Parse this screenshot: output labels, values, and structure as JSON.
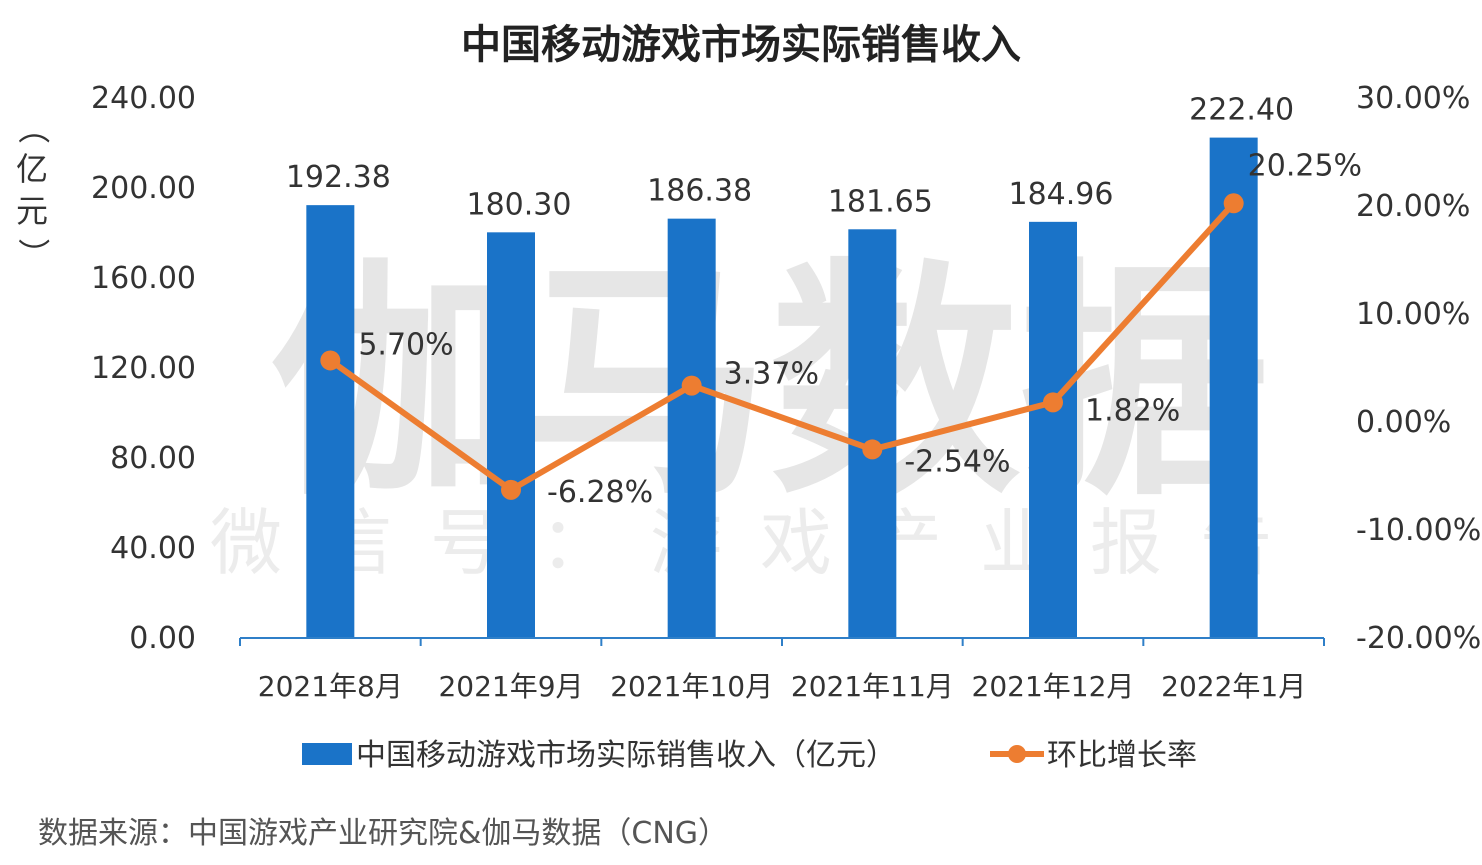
{
  "chart_data": {
    "type": "bar",
    "title": "中国移动游戏市场实际销售收入",
    "ylabel": "（亿元）",
    "categories": [
      "2021年8月",
      "2021年9月",
      "2021年10月",
      "2021年11月",
      "2021年12月",
      "2022年1月"
    ],
    "series": [
      {
        "name": "中国移动游戏市场实际销售收入（亿元）",
        "type": "bar",
        "axis": "left",
        "color": "#1a73c8",
        "values": [
          192.38,
          180.3,
          186.38,
          181.65,
          184.96,
          222.4
        ],
        "labels": [
          "192.38",
          "180.30",
          "186.38",
          "181.65",
          "184.96",
          "222.40"
        ]
      },
      {
        "name": "环比增长率",
        "type": "line",
        "axis": "right",
        "color": "#ed7d31",
        "values": [
          5.7,
          -6.28,
          3.37,
          -2.54,
          1.82,
          20.25
        ],
        "labels": [
          "5.70%",
          "-6.28%",
          "3.37%",
          "-2.54%",
          "1.82%",
          "20.25%"
        ]
      }
    ],
    "ylim": [
      0,
      240
    ],
    "y_ticks": [
      "0.00",
      "40.00",
      "80.00",
      "120.00",
      "160.00",
      "200.00",
      "240.00"
    ],
    "y2lim": [
      -20,
      30
    ],
    "y2_ticks": [
      "-20.00%",
      "-10.00%",
      "0.00%",
      "10.00%",
      "20.00%",
      "30.00%"
    ],
    "legend": "bottom",
    "grid": false
  },
  "watermark": {
    "main": "伽马数据",
    "sub": "微信号：游戏产业报告"
  },
  "source": "数据来源：中国游戏产业研究院&伽马数据（CNG）"
}
